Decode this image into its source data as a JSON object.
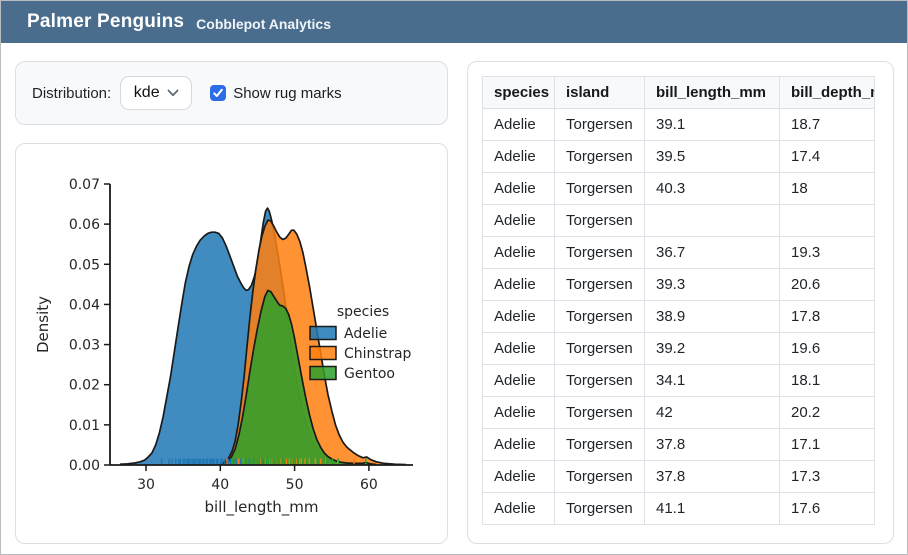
{
  "header": {
    "title": "Palmer Penguins",
    "subtitle": "Cobblepot Analytics"
  },
  "controls": {
    "distribution_label": "Distribution:",
    "distribution_value": "kde",
    "rug_label": "Show rug marks",
    "rug_checked": true
  },
  "colors": {
    "header_bg": "#4a6d8e",
    "checkbox_accent": "#2d6ce8",
    "card_border": "#dcdfe3",
    "panel_bg": "#f8f9fa",
    "chart_text": "#262626",
    "curve_edge": "#1a1a1a"
  },
  "chart_data": {
    "type": "area",
    "subtype": "kde-density-with-rug",
    "title": "",
    "xlabel": "bill_length_mm",
    "ylabel": "Density",
    "xlim": [
      26,
      66
    ],
    "ylim": [
      0,
      0.07
    ],
    "xticks": [
      30,
      40,
      50,
      60
    ],
    "yticks": [
      0,
      0.01,
      0.02,
      0.03,
      0.04,
      0.05,
      0.06,
      0.07
    ],
    "grid": false,
    "legend_title": "species",
    "legend_position": "center-right",
    "series": [
      {
        "name": "Adelie",
        "color": "#1f77b4",
        "fill_alpha": 0.85,
        "points": [
          [
            26.5,
            0.0002
          ],
          [
            27.5,
            0.0003
          ],
          [
            28.5,
            0.0005
          ],
          [
            29.2,
            0.0008
          ],
          [
            29.8,
            0.0012
          ],
          [
            30.3,
            0.002
          ],
          [
            30.8,
            0.003
          ],
          [
            31.3,
            0.005
          ],
          [
            31.8,
            0.008
          ],
          [
            32.3,
            0.012
          ],
          [
            32.8,
            0.017
          ],
          [
            33.3,
            0.022
          ],
          [
            33.8,
            0.028
          ],
          [
            34.3,
            0.034
          ],
          [
            34.8,
            0.04
          ],
          [
            35.3,
            0.0455
          ],
          [
            35.8,
            0.0495
          ],
          [
            36.3,
            0.0525
          ],
          [
            36.8,
            0.0545
          ],
          [
            37.3,
            0.056
          ],
          [
            37.8,
            0.057
          ],
          [
            38.3,
            0.0577
          ],
          [
            38.8,
            0.058
          ],
          [
            39.3,
            0.058
          ],
          [
            39.8,
            0.0577
          ],
          [
            40.3,
            0.0565
          ],
          [
            40.8,
            0.0545
          ],
          [
            41.3,
            0.052
          ],
          [
            41.8,
            0.0495
          ],
          [
            42.3,
            0.047
          ],
          [
            42.8,
            0.0452
          ],
          [
            43.2,
            0.044
          ],
          [
            43.5,
            0.0435
          ],
          [
            43.8,
            0.0437
          ],
          [
            44.2,
            0.0448
          ],
          [
            44.6,
            0.047
          ],
          [
            45.0,
            0.0505
          ],
          [
            45.4,
            0.0555
          ],
          [
            45.8,
            0.0605
          ],
          [
            46.1,
            0.0632
          ],
          [
            46.35,
            0.064
          ],
          [
            46.6,
            0.0632
          ],
          [
            46.9,
            0.061
          ],
          [
            47.3,
            0.0575
          ],
          [
            47.8,
            0.052
          ],
          [
            48.4,
            0.045
          ],
          [
            49.0,
            0.037
          ],
          [
            49.6,
            0.029
          ],
          [
            50.2,
            0.022
          ],
          [
            50.9,
            0.015
          ],
          [
            51.6,
            0.01
          ],
          [
            52.4,
            0.006
          ],
          [
            53.2,
            0.0035
          ],
          [
            54.0,
            0.002
          ],
          [
            55.0,
            0.001
          ],
          [
            56.0,
            0.0006
          ],
          [
            57.0,
            0.0004
          ],
          [
            58.0,
            0.0002
          ],
          [
            59.0,
            0.0001
          ],
          [
            60.0,
            0.0001
          ]
        ],
        "rug": [
          32.1,
          33.1,
          33.5,
          34.0,
          34.4,
          34.6,
          35.0,
          35.2,
          35.5,
          35.7,
          35.9,
          36.2,
          36.4,
          36.6,
          36.7,
          37.0,
          37.2,
          37.3,
          37.6,
          37.8,
          38.1,
          38.3,
          38.6,
          38.8,
          39.0,
          39.2,
          39.5,
          39.7,
          40.1,
          40.3,
          40.6,
          40.9,
          41.1,
          41.4,
          41.8,
          42.2,
          42.7,
          43.2,
          43.9,
          44.5,
          45.2,
          45.8
        ]
      },
      {
        "name": "Chinstrap",
        "color": "#ff7f0e",
        "fill_alpha": 0.85,
        "points": [
          [
            40.0,
            0.0002
          ],
          [
            40.4,
            0.0005
          ],
          [
            40.8,
            0.001
          ],
          [
            41.2,
            0.002
          ],
          [
            41.6,
            0.0035
          ],
          [
            42.0,
            0.006
          ],
          [
            42.4,
            0.01
          ],
          [
            42.8,
            0.0155
          ],
          [
            43.2,
            0.022
          ],
          [
            43.6,
            0.0295
          ],
          [
            44.0,
            0.037
          ],
          [
            44.4,
            0.0435
          ],
          [
            44.8,
            0.049
          ],
          [
            45.2,
            0.0535
          ],
          [
            45.6,
            0.057
          ],
          [
            46.0,
            0.0595
          ],
          [
            46.4,
            0.061
          ],
          [
            46.8,
            0.0608
          ],
          [
            47.2,
            0.0595
          ],
          [
            47.6,
            0.058
          ],
          [
            48.0,
            0.0568
          ],
          [
            48.4,
            0.0562
          ],
          [
            48.8,
            0.0565
          ],
          [
            49.2,
            0.0575
          ],
          [
            49.6,
            0.0585
          ],
          [
            49.9,
            0.0585
          ],
          [
            50.3,
            0.0575
          ],
          [
            50.7,
            0.0557
          ],
          [
            51.1,
            0.053
          ],
          [
            51.5,
            0.0495
          ],
          [
            52.0,
            0.0445
          ],
          [
            52.5,
            0.039
          ],
          [
            53.0,
            0.0335
          ],
          [
            53.5,
            0.028
          ],
          [
            54.0,
            0.0225
          ],
          [
            54.5,
            0.0175
          ],
          [
            55.0,
            0.0135
          ],
          [
            55.5,
            0.01
          ],
          [
            56.0,
            0.0075
          ],
          [
            56.5,
            0.0057
          ],
          [
            57.0,
            0.0045
          ],
          [
            57.5,
            0.0037
          ],
          [
            58.0,
            0.003
          ],
          [
            58.6,
            0.0023
          ],
          [
            59.2,
            0.0018
          ],
          [
            59.7,
            0.002
          ],
          [
            60.3,
            0.0013
          ],
          [
            61.0,
            0.0008
          ],
          [
            62.0,
            0.0004
          ],
          [
            63.5,
            0.0002
          ],
          [
            65.0,
            0.0001
          ]
        ],
        "rug": [
          40.9,
          42.4,
          42.5,
          43.2,
          45.2,
          45.4,
          46.0,
          46.6,
          46.9,
          47.5,
          48.1,
          48.9,
          49.3,
          49.7,
          50.2,
          50.6,
          50.9,
          51.4,
          52.0,
          52.8,
          53.5,
          54.2,
          55.8,
          58.0
        ]
      },
      {
        "name": "Gentoo",
        "color": "#2ca02c",
        "fill_alpha": 0.85,
        "points": [
          [
            40.5,
            0.0002
          ],
          [
            41.0,
            0.0008
          ],
          [
            41.5,
            0.002
          ],
          [
            42.0,
            0.004
          ],
          [
            42.5,
            0.0075
          ],
          [
            43.0,
            0.012
          ],
          [
            43.5,
            0.0175
          ],
          [
            44.0,
            0.0235
          ],
          [
            44.5,
            0.029
          ],
          [
            45.0,
            0.034
          ],
          [
            45.5,
            0.0385
          ],
          [
            46.0,
            0.042
          ],
          [
            46.4,
            0.0435
          ],
          [
            46.8,
            0.0432
          ],
          [
            47.2,
            0.042
          ],
          [
            47.6,
            0.0408
          ],
          [
            48.0,
            0.0398
          ],
          [
            48.4,
            0.0396
          ],
          [
            48.8,
            0.039
          ],
          [
            49.2,
            0.0375
          ],
          [
            49.6,
            0.035
          ],
          [
            50.0,
            0.0315
          ],
          [
            50.5,
            0.0265
          ],
          [
            51.0,
            0.0215
          ],
          [
            51.5,
            0.0168
          ],
          [
            52.0,
            0.0125
          ],
          [
            52.5,
            0.009
          ],
          [
            53.0,
            0.0063
          ],
          [
            53.5,
            0.0044
          ],
          [
            54.0,
            0.003
          ],
          [
            54.5,
            0.0021
          ],
          [
            55.0,
            0.0015
          ],
          [
            55.6,
            0.001
          ],
          [
            56.2,
            0.0007
          ],
          [
            57.0,
            0.0005
          ],
          [
            58.0,
            0.0004
          ],
          [
            59.0,
            0.0004
          ],
          [
            59.6,
            0.0006
          ],
          [
            60.2,
            0.0003
          ],
          [
            61.0,
            0.0001
          ]
        ],
        "rug": [
          41.7,
          42.0,
          43.3,
          43.5,
          44.0,
          44.5,
          45.1,
          45.3,
          45.6,
          45.9,
          46.2,
          46.5,
          46.8,
          47.2,
          47.5,
          48.0,
          48.4,
          48.7,
          49.1,
          49.5,
          49.8,
          50.1,
          50.5,
          51.1,
          51.6,
          52.2,
          53.1,
          54.3,
          55.1,
          55.9,
          59.6
        ]
      }
    ]
  },
  "table": {
    "columns": [
      "species",
      "island",
      "bill_length_mm",
      "bill_depth_mm"
    ],
    "rows": [
      [
        "Adelie",
        "Torgersen",
        "39.1",
        "18.7"
      ],
      [
        "Adelie",
        "Torgersen",
        "39.5",
        "17.4"
      ],
      [
        "Adelie",
        "Torgersen",
        "40.3",
        "18"
      ],
      [
        "Adelie",
        "Torgersen",
        "",
        ""
      ],
      [
        "Adelie",
        "Torgersen",
        "36.7",
        "19.3"
      ],
      [
        "Adelie",
        "Torgersen",
        "39.3",
        "20.6"
      ],
      [
        "Adelie",
        "Torgersen",
        "38.9",
        "17.8"
      ],
      [
        "Adelie",
        "Torgersen",
        "39.2",
        "19.6"
      ],
      [
        "Adelie",
        "Torgersen",
        "34.1",
        "18.1"
      ],
      [
        "Adelie",
        "Torgersen",
        "42",
        "20.2"
      ],
      [
        "Adelie",
        "Torgersen",
        "37.8",
        "17.1"
      ],
      [
        "Adelie",
        "Torgersen",
        "37.8",
        "17.3"
      ],
      [
        "Adelie",
        "Torgersen",
        "41.1",
        "17.6"
      ]
    ]
  }
}
